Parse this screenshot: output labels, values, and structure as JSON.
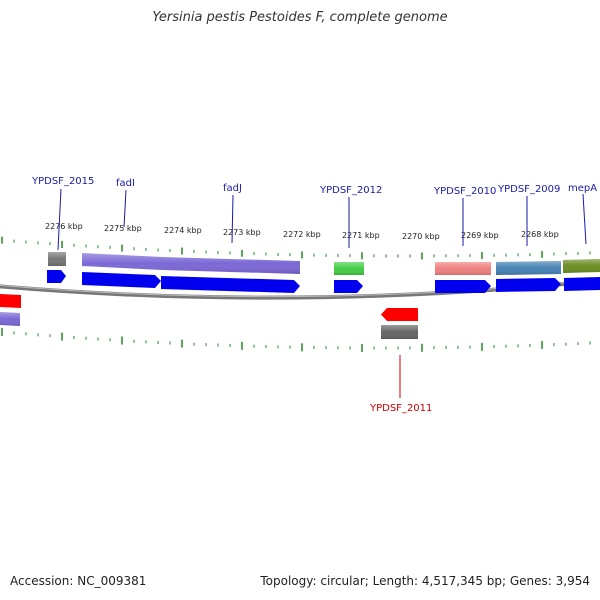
{
  "title": "Yersinia pestis Pestoides F, complete genome",
  "footer": {
    "accession": "Accession: NC_009381",
    "summary": "Topology: circular; Length: 4,517,345 bp; Genes: 3,954"
  },
  "colors": {
    "cds": "#0000ee",
    "forward_label": "#1a1aaa",
    "reverse_label": "#cc0000",
    "backbone": "#808080",
    "tick": "#228b22"
  },
  "kbp_labels": [
    "2276 kbp",
    "2275 kbp",
    "2274 kbp",
    "2273 kbp",
    "2272 kbp",
    "2271 kbp",
    "2270 kbp",
    "2269 kbp",
    "2268 kbp"
  ],
  "genes_forward": [
    {
      "name": "YPDSF_2015",
      "feature_color": "#7a7a7a"
    },
    {
      "name": "fadI",
      "feature_color": "#7b68d6"
    },
    {
      "name": "fadJ",
      "feature_color": "#7b68d6"
    },
    {
      "name": "YPDSF_2012",
      "feature_color": "#44cc44"
    },
    {
      "name": "YPDSF_2010",
      "feature_color": "#f08080"
    },
    {
      "name": "YPDSF_2009",
      "feature_color": "#4682b4"
    },
    {
      "name": "mepA",
      "feature_color": "#6b8e23"
    }
  ],
  "genes_reverse": [
    {
      "name": "YPDSF_2011",
      "feature_color": "#7a7a7a"
    }
  ]
}
